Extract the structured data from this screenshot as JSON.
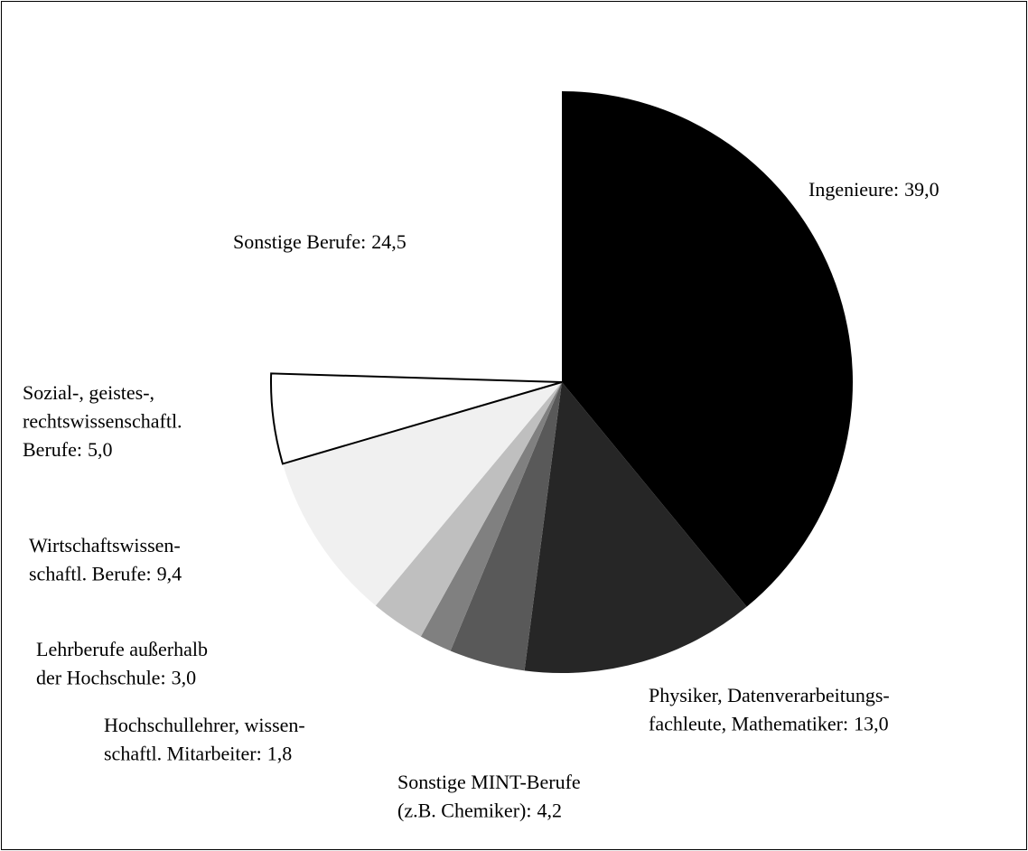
{
  "chart_data": {
    "type": "pie",
    "categories": [
      [
        "Ingenieure:"
      ],
      [
        "Physiker, Datenverarbeitungs-",
        "fachleute, Mathematiker:"
      ],
      [
        "Sonstige MINT-Berufe",
        "(z.B. Chemiker):"
      ],
      [
        "Hochschullehrer, wissen-",
        "schaftl. Mitarbeiter:"
      ],
      [
        "Lehrberufe außerhalb",
        "der Hochschule:"
      ],
      [
        "Wirtschaftswissen-",
        "schaftl. Berufe:"
      ],
      [
        "Sozial-, geistes-,",
        "rechtswissenschaftl.",
        "Berufe:"
      ],
      [
        "Sonstige Berufe:"
      ]
    ],
    "values": [
      39.0,
      13.0,
      4.2,
      1.8,
      3.0,
      9.4,
      5.0,
      24.5
    ],
    "value_labels": [
      "39,0",
      "13,0",
      "4,2",
      "1,8",
      "3,0",
      "9,4",
      "5,0",
      "24,5"
    ],
    "colors": [
      "#000000",
      "#262626",
      "#595959",
      "#808080",
      "#bfbfbf",
      "#f0f0f0",
      "#ffffff",
      "none"
    ]
  }
}
